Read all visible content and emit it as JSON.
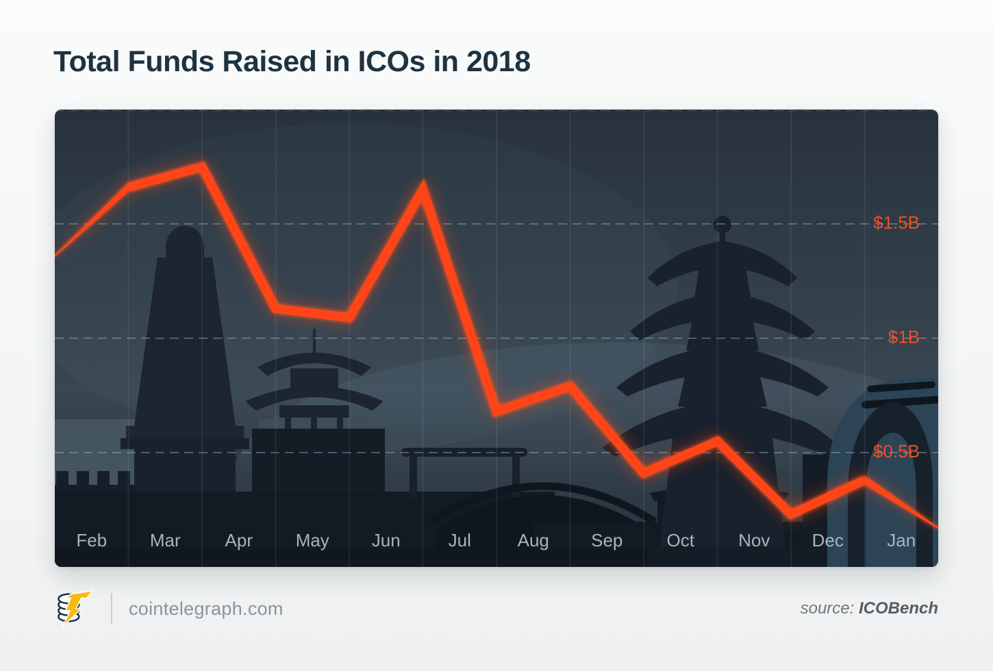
{
  "page": {
    "title": "Total Funds Raised in ICOs in 2018"
  },
  "footer": {
    "site": "cointelegraph.com",
    "source_label": "source:",
    "source_value": "ICOBench",
    "logo": "cointelegraph-coins-lightning-logo"
  },
  "chart_data": {
    "type": "line",
    "title": "Total Funds Raised in ICOs in 2018",
    "unit": "billion USD",
    "categories": [
      "Feb",
      "Mar",
      "Apr",
      "May",
      "Jun",
      "Jul",
      "Aug",
      "Sep",
      "Oct",
      "Nov",
      "Dec",
      "Jan"
    ],
    "values": [
      1.66,
      1.75,
      1.13,
      1.09,
      1.65,
      0.68,
      0.79,
      0.41,
      0.55,
      0.23,
      0.38,
      0.17
    ],
    "lead_in_value": 1.36,
    "x_note": "each value is plotted at the right boundary of its month column; the line enters at the left panel edge at the lead-in value and tapers thin at both ends",
    "ylim": [
      0,
      2
    ],
    "y_ticks": [
      {
        "label": "$1.5B",
        "value": 1.5
      },
      {
        "label": "$1B",
        "value": 1.0
      },
      {
        "label": "$0.5B",
        "value": 0.5
      }
    ],
    "grid": {
      "horizontal": "dashed lines at y ticks",
      "vertical": "faint month-boundary separators"
    },
    "legend_position": "none",
    "colors": {
      "line": "#ff4517",
      "y_tick_labels": "#ef4e23",
      "month_labels": "#a8b4bb",
      "panel_sky": "#36434e",
      "silhouettes": "#1b2530"
    },
    "background_illustration": "night skyline silhouette of Chinese landmarks: city wall with battlements, bell tower, small pagoda, arched bridge, multi-tier pagoda, modern arch-gate tower"
  }
}
